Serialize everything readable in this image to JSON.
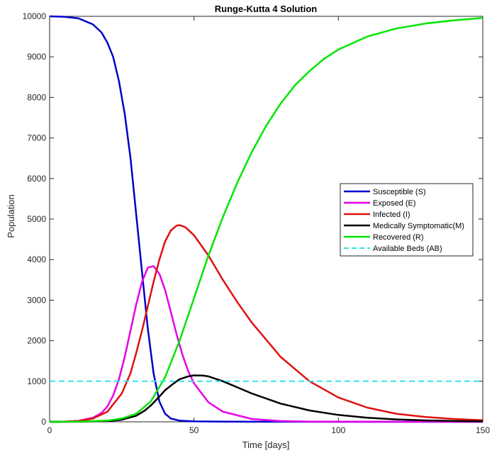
{
  "chart_data": {
    "type": "line",
    "title": "Runge-Kutta 4 Solution",
    "xlabel": "Time [days]",
    "ylabel": "Population",
    "xlim": [
      0,
      150
    ],
    "ylim": [
      0,
      10000
    ],
    "xticks": [
      0,
      50,
      100,
      150
    ],
    "yticks": [
      0,
      1000,
      2000,
      3000,
      4000,
      5000,
      6000,
      7000,
      8000,
      9000,
      10000
    ],
    "grid": false,
    "legend_position": "right",
    "series": [
      {
        "name": "Susceptible (S)",
        "color": "#0000cc",
        "style": "solid",
        "x": [
          0,
          5,
          10,
          15,
          18,
          20,
          22,
          24,
          26,
          28,
          30,
          32,
          34,
          36,
          38,
          40,
          42,
          45,
          50,
          60,
          80,
          100,
          150
        ],
        "y": [
          10000,
          9990,
          9950,
          9800,
          9600,
          9350,
          9000,
          8400,
          7600,
          6500,
          5100,
          3700,
          2300,
          1200,
          500,
          200,
          80,
          30,
          10,
          3,
          1,
          0,
          0
        ]
      },
      {
        "name": "Exposed (E)",
        "color": "#e600e6",
        "style": "solid",
        "x": [
          0,
          5,
          10,
          15,
          18,
          20,
          22,
          24,
          26,
          28,
          30,
          32,
          34,
          36,
          38,
          40,
          42,
          44,
          46,
          48,
          50,
          55,
          60,
          70,
          80,
          90,
          100,
          150
        ],
        "y": [
          0,
          5,
          25,
          100,
          220,
          380,
          650,
          1050,
          1600,
          2250,
          2900,
          3450,
          3800,
          3840,
          3650,
          3250,
          2700,
          2150,
          1650,
          1250,
          950,
          480,
          250,
          70,
          20,
          6,
          2,
          0
        ]
      },
      {
        "name": "Infected (I)",
        "color": "#e01010",
        "style": "solid",
        "x": [
          0,
          5,
          10,
          15,
          20,
          25,
          28,
          30,
          32,
          34,
          36,
          38,
          40,
          42,
          44,
          45,
          47,
          50,
          55,
          60,
          65,
          70,
          80,
          90,
          100,
          110,
          120,
          130,
          140,
          150
        ],
        "y": [
          0,
          5,
          20,
          80,
          250,
          700,
          1200,
          1700,
          2250,
          2850,
          3450,
          4000,
          4450,
          4720,
          4840,
          4850,
          4800,
          4600,
          4100,
          3500,
          2950,
          2450,
          1600,
          1000,
          600,
          350,
          200,
          120,
          70,
          40
        ]
      },
      {
        "name": "Medically Symptomatic(M)",
        "color": "#000000",
        "style": "solid",
        "x": [
          0,
          10,
          20,
          25,
          30,
          33,
          35,
          38,
          40,
          43,
          45,
          48,
          50,
          53,
          55,
          60,
          65,
          70,
          80,
          90,
          100,
          110,
          120,
          130,
          140,
          150
        ],
        "y": [
          0,
          2,
          20,
          50,
          150,
          280,
          400,
          620,
          780,
          950,
          1050,
          1120,
          1145,
          1140,
          1120,
          1000,
          850,
          700,
          450,
          280,
          170,
          100,
          60,
          35,
          20,
          12
        ]
      },
      {
        "name": "Recovered (R)",
        "color": "#00e600",
        "style": "solid",
        "x": [
          0,
          10,
          20,
          25,
          30,
          35,
          40,
          45,
          50,
          55,
          60,
          65,
          70,
          75,
          80,
          85,
          90,
          95,
          100,
          110,
          120,
          130,
          140,
          150
        ],
        "y": [
          0,
          5,
          30,
          80,
          200,
          500,
          1100,
          2000,
          3050,
          4100,
          5050,
          5900,
          6650,
          7300,
          7850,
          8300,
          8650,
          8950,
          9180,
          9500,
          9700,
          9820,
          9900,
          9960
        ]
      },
      {
        "name": "Available Beds (AB)",
        "color": "#33e6e6",
        "style": "dashed",
        "x": [
          0,
          150
        ],
        "y": [
          1000,
          1000
        ]
      }
    ]
  }
}
